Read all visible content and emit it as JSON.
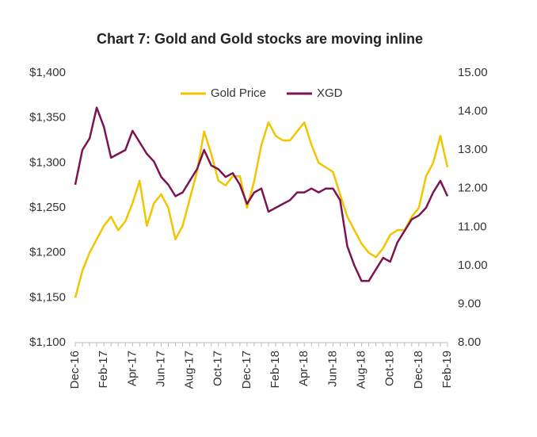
{
  "chart_data": {
    "type": "line",
    "title": "Chart 7: Gold and Gold stocks are moving inline",
    "categories": [
      "Dec-16",
      null,
      null,
      null,
      "Feb-17",
      null,
      null,
      null,
      "Apr-17",
      null,
      null,
      null,
      "Jun-17",
      null,
      null,
      null,
      "Aug-17",
      null,
      null,
      null,
      "Oct-17",
      null,
      null,
      null,
      "Dec-17",
      null,
      null,
      null,
      "Feb-18",
      null,
      null,
      null,
      "Apr-18",
      null,
      null,
      null,
      "Jun-18",
      null,
      null,
      null,
      "Aug-18",
      null,
      null,
      null,
      "Oct-18",
      null,
      null,
      null,
      "Dec-18",
      null,
      null,
      null,
      "Feb-19"
    ],
    "series": [
      {
        "name": "Gold Price",
        "color": "#f2c500",
        "values": [
          1150,
          1180,
          1200,
          1215,
          1230,
          1240,
          1225,
          1235,
          1255,
          1280,
          1230,
          1255,
          1265,
          1250,
          1215,
          1230,
          1260,
          1290,
          1335,
          1310,
          1280,
          1275,
          1285,
          1285,
          1250,
          1280,
          1320,
          1345,
          1330,
          1325,
          1325,
          1335,
          1345,
          1320,
          1300,
          1295,
          1290,
          1265,
          1240,
          1225,
          1210,
          1200,
          1195,
          1205,
          1220,
          1225,
          1225,
          1240,
          1250,
          1285,
          1300,
          1330,
          1295
        ]
      },
      {
        "name": "XGD",
        "color": "#7b1450",
        "axis": "y2",
        "values": [
          12.1,
          13.0,
          13.3,
          14.1,
          13.6,
          12.8,
          12.9,
          13.0,
          13.5,
          13.2,
          12.9,
          12.7,
          12.3,
          12.1,
          11.8,
          11.9,
          12.2,
          12.5,
          13.0,
          12.6,
          12.5,
          12.3,
          12.4,
          12.1,
          11.6,
          11.9,
          12.0,
          11.4,
          11.5,
          11.6,
          11.7,
          11.9,
          11.9,
          12.0,
          11.9,
          12.0,
          12.0,
          11.7,
          10.5,
          10.0,
          9.6,
          9.6,
          9.9,
          10.2,
          10.1,
          10.6,
          10.9,
          11.2,
          11.3,
          11.5,
          11.9,
          12.2,
          11.8
        ]
      }
    ],
    "ylim": [
      1100,
      1400
    ],
    "yticks": [
      {
        "value": 1100,
        "label": "$1,100"
      },
      {
        "value": 1150,
        "label": "$1,150"
      },
      {
        "value": 1200,
        "label": "$1,200"
      },
      {
        "value": 1250,
        "label": "$1,250"
      },
      {
        "value": 1300,
        "label": "$1,300"
      },
      {
        "value": 1350,
        "label": "$1,350"
      },
      {
        "value": 1400,
        "label": "$1,400"
      }
    ],
    "y2lim": [
      8,
      15
    ],
    "y2ticks": [
      {
        "value": 8,
        "label": "8.00"
      },
      {
        "value": 9,
        "label": "9.00"
      },
      {
        "value": 10,
        "label": "10.00"
      },
      {
        "value": 11,
        "label": "11.00"
      },
      {
        "value": 12,
        "label": "12.00"
      },
      {
        "value": 13,
        "label": "13.00"
      },
      {
        "value": 14,
        "label": "14.00"
      },
      {
        "value": 15,
        "label": "15.00"
      }
    ],
    "grid": false,
    "legend": "top"
  }
}
